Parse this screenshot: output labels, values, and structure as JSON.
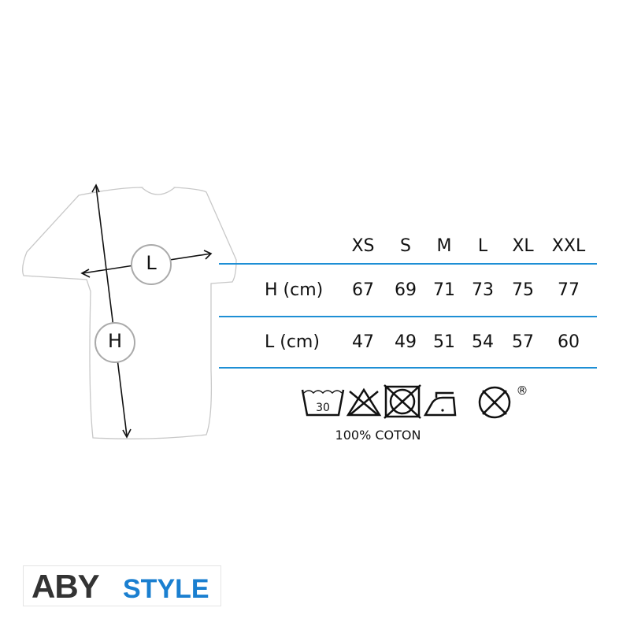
{
  "diagram": {
    "width_marker": "L",
    "height_marker": "H"
  },
  "size_table": {
    "sizes": [
      "XS",
      "S",
      "M",
      "L",
      "XL",
      "XXL"
    ],
    "rows": [
      {
        "label": "H (cm)",
        "values": [
          "67",
          "69",
          "71",
          "73",
          "75",
          "77"
        ]
      },
      {
        "label": "L (cm)",
        "values": [
          "47",
          "49",
          "51",
          "54",
          "57",
          "60"
        ]
      }
    ],
    "line_color": "#1e8fd5"
  },
  "care": {
    "icons": [
      "wash-30-icon",
      "no-bleach-icon",
      "no-tumble-dry-icon",
      "iron-low-icon",
      "no-dry-clean-icon"
    ],
    "wash_temp": "30",
    "registered": "®",
    "fabric": "100% COTON"
  },
  "brand": {
    "part1": "ABY",
    "part2": "STYLE",
    "color_dark": "#333333",
    "color_blue": "#1a7fd0"
  }
}
